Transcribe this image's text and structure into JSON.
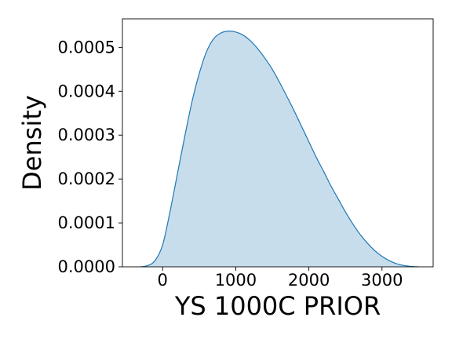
{
  "chart_data": {
    "type": "area",
    "title": "",
    "xlabel": "YS 1000C PRIOR",
    "ylabel": "Density",
    "xlim": [
      -550,
      3700
    ],
    "ylim": [
      0,
      0.000565
    ],
    "x_ticks": [
      0,
      1000,
      2000,
      3000
    ],
    "x_tick_labels": [
      "0",
      "1000",
      "2000",
      "3000"
    ],
    "y_ticks": [
      0,
      0.0001,
      0.0002,
      0.0003,
      0.0004,
      0.0005
    ],
    "y_tick_labels": [
      "0.0000",
      "0.0001",
      "0.0002",
      "0.0003",
      "0.0004",
      "0.0005"
    ],
    "grid": false,
    "legend": "none",
    "line_color": "#1f77b4",
    "fill_color": "#1f77b4",
    "fill_opacity": 0.25,
    "series": [
      {
        "x": [
          -300,
          -200,
          -100,
          0,
          100,
          200,
          300,
          400,
          500,
          600,
          700,
          800,
          900,
          1000,
          1100,
          1200,
          1300,
          1400,
          1500,
          1600,
          1700,
          1800,
          1900,
          2000,
          2100,
          2200,
          2300,
          2400,
          2500,
          2600,
          2700,
          2800,
          2900,
          3000,
          3100,
          3200,
          3300,
          3400,
          3500
        ],
        "y": [
          0.0,
          3e-06,
          1.5e-05,
          5e-05,
          0.000125,
          0.00021,
          0.000295,
          0.000375,
          0.00044,
          0.00049,
          0.00052,
          0.000533,
          0.000537,
          0.000535,
          0.000528,
          0.000515,
          0.000497,
          0.000475,
          0.00045,
          0.00042,
          0.000388,
          0.000355,
          0.00032,
          0.000285,
          0.00025,
          0.000218,
          0.000185,
          0.000155,
          0.000125,
          9.8e-05,
          7.4e-05,
          5.4e-05,
          3.7e-05,
          2.4e-05,
          1.4e-05,
          7e-06,
          3e-06,
          1e-06,
          0.0
        ]
      }
    ]
  }
}
